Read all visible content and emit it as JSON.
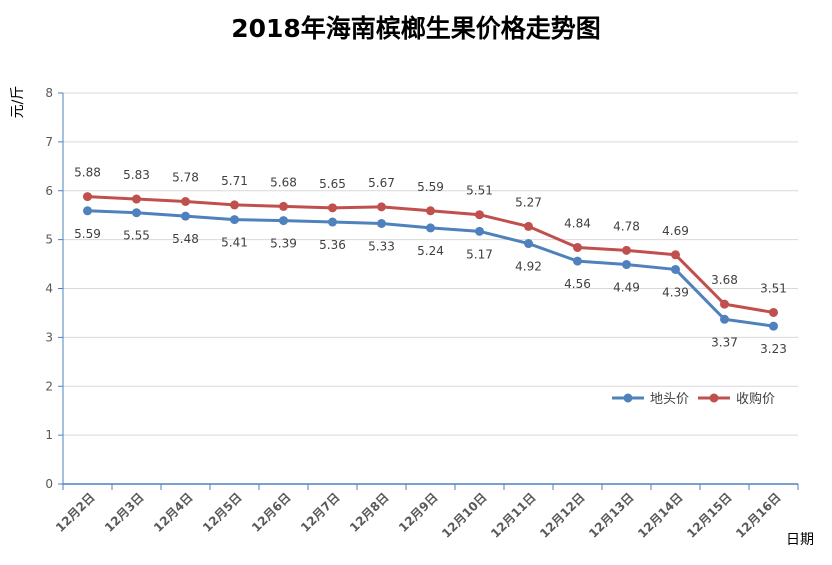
{
  "chart_data": {
    "type": "line",
    "title": "2018年海南槟榔生果价格走势图",
    "xlabel": "日期",
    "ylabel": "元/斤",
    "categories": [
      "12月2日",
      "12月3日",
      "12月4日",
      "12月5日",
      "12月6日",
      "12月7日",
      "12月8日",
      "12月9日",
      "12月10日",
      "12月11日",
      "12月12日",
      "12月13日",
      "12月14日",
      "12月15日",
      "12月16日"
    ],
    "series": [
      {
        "name": "地头价",
        "color": "#4f81bd",
        "values": [
          5.59,
          5.55,
          5.48,
          5.41,
          5.39,
          5.36,
          5.33,
          5.24,
          5.17,
          4.92,
          4.56,
          4.49,
          4.39,
          3.37,
          3.23
        ],
        "label_values": [
          "5.59",
          "5.55",
          "5.48",
          "5.41",
          "5.39",
          "5.36",
          "5.33",
          "5.24",
          "5.17",
          "4.92",
          "4.56",
          "4.49",
          "4.39",
          "3.37",
          "3.23"
        ],
        "label_position": "below"
      },
      {
        "name": "收购价",
        "color": "#c0504d",
        "values": [
          5.88,
          5.83,
          5.78,
          5.71,
          5.68,
          5.65,
          5.67,
          5.59,
          5.51,
          5.27,
          4.84,
          4.78,
          4.69,
          3.68,
          3.51
        ],
        "label_values": [
          "5.88",
          "5.83",
          "5.78",
          "5.71",
          "5.68",
          "5.65",
          "5.67",
          "5.59",
          "5.51",
          "5.27",
          "4.84",
          "4.78",
          "4.69",
          "3.68",
          "3.51"
        ],
        "label_position": "above"
      }
    ],
    "ylim": [
      0,
      8
    ],
    "yticks": [
      "0",
      "1",
      "2",
      "3",
      "4",
      "5",
      "6",
      "7",
      "8"
    ],
    "grid": true,
    "legend_position": "right"
  }
}
